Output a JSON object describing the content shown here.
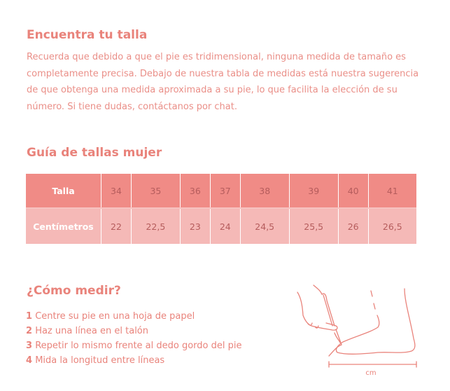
{
  "intro": {
    "title": "Encuentra tu talla",
    "text": "Recuerda que debido a que el pie es tridimensional, ninguna medida de tamaño es completamente precisa. Debajo de nuestra tabla de medidas está nuestra sugerencia de que obtenga una medida aproximada a su pie, lo que facilita la elección de su número. Si tiene dudas, contáctanos por chat."
  },
  "guide": {
    "title": "Guía de tallas mujer",
    "rows": [
      {
        "label": "Talla",
        "values": [
          "34",
          "35",
          "36",
          "37",
          "38",
          "39",
          "40",
          "41"
        ]
      },
      {
        "label": "Centímetros",
        "values": [
          "22",
          "22,5",
          "23",
          "24",
          "24,5",
          "25,5",
          "26",
          "26,5"
        ]
      }
    ]
  },
  "measure": {
    "title": "¿Cómo medir?",
    "steps": [
      {
        "num": "1",
        "text": "Centre su pie en una hoja de papel"
      },
      {
        "num": "2",
        "text": "Haz una línea en el talón"
      },
      {
        "num": "3",
        "text": "Repetir lo mismo frente al dedo gordo del pie"
      },
      {
        "num": "4",
        "text": "Mida la longitud entre líneas"
      }
    ],
    "unit_label": "cm"
  }
}
